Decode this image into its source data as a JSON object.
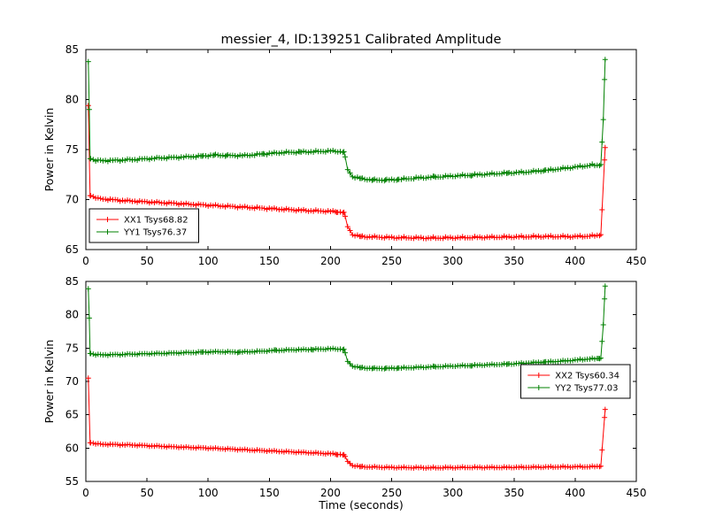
{
  "figure": {
    "title": "messier_4, ID:139251 Calibrated Amplitude"
  },
  "chart_data": [
    {
      "type": "line",
      "subplot": "top",
      "ylabel": "Power in Kelvin",
      "xlabel": "",
      "xlim": [
        0,
        450
      ],
      "ylim": [
        65,
        85
      ],
      "xticks": [
        0,
        50,
        100,
        150,
        200,
        250,
        300,
        350,
        400,
        450
      ],
      "yticks": [
        65,
        70,
        75,
        80,
        85
      ],
      "grid": false,
      "legend_position": "lower left",
      "sample_step": 2,
      "series": [
        {
          "name": "XX1 Tsys68.82",
          "color": "#ff0000",
          "marker": "+",
          "keypoints": [
            [
              2,
              79.4
            ],
            [
              3.5,
              70.4
            ],
            [
              10,
              70.1
            ],
            [
              30,
              69.9
            ],
            [
              60,
              69.7
            ],
            [
              90,
              69.5
            ],
            [
              120,
              69.3
            ],
            [
              150,
              69.1
            ],
            [
              180,
              68.9
            ],
            [
              205,
              68.8
            ],
            [
              211,
              68.7
            ],
            [
              214,
              67.3
            ],
            [
              218,
              66.5
            ],
            [
              225,
              66.3
            ],
            [
              250,
              66.2
            ],
            [
              280,
              66.15
            ],
            [
              310,
              66.2
            ],
            [
              340,
              66.25
            ],
            [
              370,
              66.3
            ],
            [
              400,
              66.3
            ],
            [
              412,
              66.35
            ],
            [
              418,
              66.4
            ],
            [
              421,
              66.5
            ],
            [
              424.5,
              75.2
            ]
          ]
        },
        {
          "name": "YY1 Tsys76.37",
          "color": "#008000",
          "marker": "+",
          "keypoints": [
            [
              2,
              83.8
            ],
            [
              2.8,
              79.0
            ],
            [
              3.5,
              74.1
            ],
            [
              8,
              73.9
            ],
            [
              20,
              73.9
            ],
            [
              40,
              74.0
            ],
            [
              60,
              74.15
            ],
            [
              80,
              74.25
            ],
            [
              95,
              74.35
            ],
            [
              105,
              74.45
            ],
            [
              115,
              74.4
            ],
            [
              130,
              74.4
            ],
            [
              145,
              74.55
            ],
            [
              160,
              74.7
            ],
            [
              175,
              74.75
            ],
            [
              190,
              74.8
            ],
            [
              200,
              74.85
            ],
            [
              208,
              74.8
            ],
            [
              211,
              74.75
            ],
            [
              214,
              73.0
            ],
            [
              218,
              72.3
            ],
            [
              225,
              72.1
            ],
            [
              235,
              71.95
            ],
            [
              245,
              71.95
            ],
            [
              255,
              72.0
            ],
            [
              270,
              72.15
            ],
            [
              285,
              72.25
            ],
            [
              300,
              72.35
            ],
            [
              315,
              72.45
            ],
            [
              330,
              72.55
            ],
            [
              345,
              72.65
            ],
            [
              360,
              72.75
            ],
            [
              375,
              72.9
            ],
            [
              390,
              73.1
            ],
            [
              400,
              73.25
            ],
            [
              408,
              73.35
            ],
            [
              414,
              73.45
            ],
            [
              418,
              73.4
            ],
            [
              421,
              73.5
            ],
            [
              423,
              78.0
            ],
            [
              424.5,
              84.0
            ]
          ]
        }
      ]
    },
    {
      "type": "line",
      "subplot": "bottom",
      "ylabel": "Power in Kelvin",
      "xlabel": "Time (seconds)",
      "xlim": [
        0,
        450
      ],
      "ylim": [
        55,
        85
      ],
      "xticks": [
        0,
        50,
        100,
        150,
        200,
        250,
        300,
        350,
        400,
        450
      ],
      "yticks": [
        55,
        60,
        65,
        70,
        75,
        80,
        85
      ],
      "grid": false,
      "legend_position": "center right",
      "sample_step": 2,
      "series": [
        {
          "name": "XX2 Tsys60.34",
          "color": "#ff0000",
          "marker": "+",
          "keypoints": [
            [
              2,
              70.5
            ],
            [
              3.5,
              60.8
            ],
            [
              10,
              60.6
            ],
            [
              40,
              60.45
            ],
            [
              70,
              60.2
            ],
            [
              100,
              60.0
            ],
            [
              130,
              59.75
            ],
            [
              160,
              59.5
            ],
            [
              190,
              59.25
            ],
            [
              205,
              59.1
            ],
            [
              211,
              59.0
            ],
            [
              214,
              58.0
            ],
            [
              218,
              57.4
            ],
            [
              225,
              57.2
            ],
            [
              250,
              57.1
            ],
            [
              280,
              57.05
            ],
            [
              310,
              57.1
            ],
            [
              340,
              57.1
            ],
            [
              370,
              57.15
            ],
            [
              400,
              57.2
            ],
            [
              412,
              57.2
            ],
            [
              418,
              57.25
            ],
            [
              421,
              57.3
            ],
            [
              424.5,
              65.8
            ]
          ]
        },
        {
          "name": "YY2 Tsys77.03",
          "color": "#008000",
          "marker": "+",
          "keypoints": [
            [
              2,
              83.9
            ],
            [
              2.8,
              79.5
            ],
            [
              3.5,
              74.2
            ],
            [
              8,
              74.0
            ],
            [
              20,
              74.0
            ],
            [
              40,
              74.1
            ],
            [
              60,
              74.2
            ],
            [
              80,
              74.3
            ],
            [
              95,
              74.4
            ],
            [
              110,
              74.45
            ],
            [
              125,
              74.4
            ],
            [
              140,
              74.5
            ],
            [
              155,
              74.65
            ],
            [
              170,
              74.75
            ],
            [
              185,
              74.8
            ],
            [
              200,
              74.9
            ],
            [
              208,
              74.85
            ],
            [
              211,
              74.8
            ],
            [
              214,
              73.0
            ],
            [
              218,
              72.3
            ],
            [
              225,
              72.05
            ],
            [
              235,
              71.95
            ],
            [
              245,
              71.95
            ],
            [
              255,
              72.0
            ],
            [
              270,
              72.1
            ],
            [
              285,
              72.2
            ],
            [
              300,
              72.3
            ],
            [
              315,
              72.4
            ],
            [
              330,
              72.5
            ],
            [
              345,
              72.6
            ],
            [
              360,
              72.75
            ],
            [
              375,
              72.9
            ],
            [
              390,
              73.05
            ],
            [
              400,
              73.2
            ],
            [
              410,
              73.35
            ],
            [
              416,
              73.4
            ],
            [
              419,
              73.45
            ],
            [
              421,
              73.5
            ],
            [
              423,
              78.5
            ],
            [
              424.5,
              84.3
            ]
          ]
        }
      ]
    }
  ]
}
